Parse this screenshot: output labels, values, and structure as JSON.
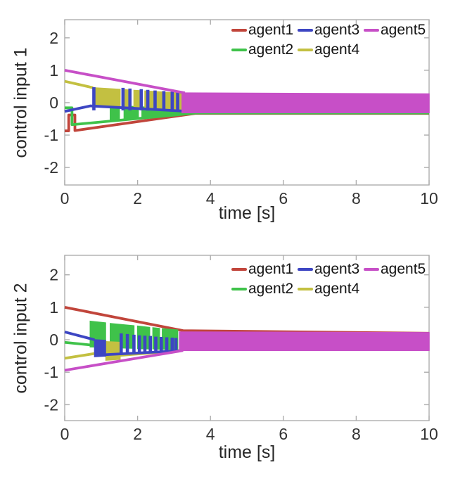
{
  "figure": {
    "background": "#ffffff"
  },
  "axis_style": {
    "box_color": "#adadad",
    "tick_label_color": "#333333",
    "tick_len": 7
  },
  "legend": {
    "rows": [
      [
        {
          "label": "agent1",
          "color": "#c1453b"
        },
        {
          "label": "agent3",
          "color": "#3d46c3"
        },
        {
          "label": "agent5",
          "color": "#c74fc7"
        }
      ],
      [
        {
          "label": "agent2",
          "color": "#3fc24a"
        },
        {
          "label": "agent4",
          "color": "#c3c041"
        }
      ]
    ]
  },
  "chart_data": [
    {
      "type": "line",
      "title": "",
      "ylabel": "control input 1",
      "xlabel": "time [s]",
      "xlim": [
        0,
        10
      ],
      "ylim": [
        -2.54,
        2.56
      ],
      "xticks": [
        0,
        2,
        4,
        6,
        8,
        10
      ],
      "yticks": [
        -2,
        -1,
        0,
        1,
        2
      ],
      "grid": false,
      "legend_position": "top-right-inside",
      "series": [
        {
          "name": "agent1",
          "color": "#c1453b",
          "lines": [
            [
              [
                0,
                -0.87
              ],
              [
                0.11,
                -0.87
              ],
              [
                0.11,
                -0.38
              ],
              [
                0.28,
                -0.38
              ],
              [
                0.28,
                -0.86
              ],
              [
                3.6,
                -0.33
              ],
              [
                10,
                -0.33
              ]
            ]
          ],
          "bands": []
        },
        {
          "name": "agent2",
          "color": "#3fc24a",
          "lines": [
            [
              [
                0,
                -0.16
              ],
              [
                0.2,
                -0.16
              ],
              [
                0.2,
                -0.68
              ],
              [
                3.6,
                -0.32
              ],
              [
                10,
                -0.32
              ]
            ]
          ],
          "bands": [
            {
              "x": [
                1.25,
                1.5
              ],
              "top": [
                -0.07,
                -0.09
              ],
              "bot": [
                -0.55,
                -0.52
              ]
            },
            {
              "x": [
                1.63,
                2.02
              ],
              "top": [
                -0.1,
                -0.13
              ],
              "bot": [
                -0.5,
                -0.45
              ]
            },
            {
              "x": [
                2.12,
                3.25
              ],
              "top": [
                -0.13,
                -0.2
              ],
              "bot": [
                -0.44,
                -0.31
              ]
            }
          ]
        },
        {
          "name": "agent4",
          "color": "#c3c041",
          "lines": [
            [
              [
                0,
                0.66
              ],
              [
                0.78,
                0.46
              ]
            ]
          ],
          "bands": [
            {
              "x": [
                0.78,
                1.52
              ],
              "top": [
                0.46,
                0.41
              ],
              "bot": [
                -0.1,
                -0.13
              ]
            },
            {
              "x": [
                1.64,
                1.74
              ],
              "top": [
                0.4,
                0.39
              ],
              "bot": [
                -0.13,
                -0.14
              ]
            },
            {
              "x": [
                1.9,
                2.07
              ],
              "top": [
                0.38,
                0.37
              ],
              "bot": [
                -0.14,
                -0.15
              ]
            },
            {
              "x": [
                2.2,
                3.22
              ],
              "top": [
                0.36,
                0.29
              ],
              "bot": [
                -0.15,
                -0.2
              ]
            }
          ]
        },
        {
          "name": "agent3",
          "color": "#3d46c3",
          "lines": [
            [
              [
                0,
                -0.27
              ],
              [
                0.7,
                -0.1
              ],
              [
                3.25,
                -0.26
              ]
            ]
          ],
          "bands": [
            {
              "x": [
                0.77,
                0.83
              ],
              "top": [
                0.46,
                0.46
              ],
              "bot": [
                -0.22,
                -0.22
              ]
            },
            {
              "x": [
                1.57,
                1.63
              ],
              "top": [
                0.44,
                0.44
              ],
              "bot": [
                -0.22,
                -0.22
              ]
            },
            {
              "x": [
                1.76,
                1.82
              ],
              "top": [
                0.42,
                0.42
              ],
              "bot": [
                -0.22,
                -0.22
              ]
            },
            {
              "x": [
                2.07,
                2.13
              ],
              "top": [
                0.4,
                0.4
              ],
              "bot": [
                -0.22,
                -0.22
              ]
            },
            {
              "x": [
                2.25,
                2.31
              ],
              "top": [
                0.38,
                0.38
              ],
              "bot": [
                -0.23,
                -0.23
              ]
            },
            {
              "x": [
                2.45,
                2.51
              ],
              "top": [
                0.36,
                0.36
              ],
              "bot": [
                -0.23,
                -0.23
              ]
            },
            {
              "x": [
                2.69,
                2.75
              ],
              "top": [
                0.34,
                0.34
              ],
              "bot": [
                -0.24,
                -0.24
              ]
            },
            {
              "x": [
                2.92,
                2.98
              ],
              "top": [
                0.32,
                0.32
              ],
              "bot": [
                -0.25,
                -0.25
              ]
            },
            {
              "x": [
                3.07,
                3.13
              ],
              "top": [
                0.3,
                0.3
              ],
              "bot": [
                -0.26,
                -0.26
              ]
            }
          ]
        },
        {
          "name": "agent5",
          "color": "#c74fc7",
          "lines": [
            [
              [
                0,
                1.0
              ],
              [
                3.3,
                0.3
              ]
            ]
          ],
          "bands": [
            {
              "x": [
                3.22,
                10
              ],
              "top": [
                0.3,
                0.27
              ],
              "bot": [
                -0.31,
                -0.31
              ]
            }
          ]
        }
      ]
    },
    {
      "type": "line",
      "title": "",
      "ylabel": "control input 2",
      "xlabel": "time [s]",
      "xlim": [
        0,
        10
      ],
      "ylim": [
        -2.49,
        2.6
      ],
      "xticks": [
        0,
        2,
        4,
        6,
        8,
        10
      ],
      "yticks": [
        -2,
        -1,
        0,
        1,
        2
      ],
      "grid": false,
      "legend_position": "top-right-inside",
      "series": [
        {
          "name": "agent1",
          "color": "#c1453b",
          "lines": [
            [
              [
                0,
                1.0
              ],
              [
                3.25,
                0.28
              ],
              [
                10,
                0.2
              ]
            ]
          ],
          "bands": []
        },
        {
          "name": "agent2",
          "color": "#3fc24a",
          "lines": [
            [
              [
                0,
                -0.08
              ],
              [
                0.7,
                -0.16
              ]
            ]
          ],
          "bands": [
            {
              "x": [
                0.7,
                1.12
              ],
              "top": [
                0.57,
                0.52
              ],
              "bot": [
                -0.22,
                -0.23
              ]
            },
            {
              "x": [
                1.25,
                1.9
              ],
              "top": [
                0.5,
                0.43
              ],
              "bot": [
                -0.24,
                -0.26
              ]
            },
            {
              "x": [
                2.0,
                2.33
              ],
              "top": [
                0.42,
                0.38
              ],
              "bot": [
                -0.27,
                -0.28
              ]
            },
            {
              "x": [
                2.42,
                2.6
              ],
              "top": [
                0.37,
                0.35
              ],
              "bot": [
                -0.28,
                -0.29
              ]
            },
            {
              "x": [
                2.68,
                3.1
              ],
              "top": [
                0.34,
                0.3
              ],
              "bot": [
                -0.29,
                -0.31
              ]
            }
          ]
        },
        {
          "name": "agent4",
          "color": "#c3c041",
          "lines": [
            [
              [
                0,
                -0.57
              ],
              [
                0.85,
                -0.42
              ],
              [
                1.13,
                -0.38
              ]
            ],
            [
              [
                1.52,
                -0.48
              ],
              [
                3.2,
                -0.33
              ]
            ]
          ],
          "bands": [
            {
              "x": [
                1.13,
                1.52
              ],
              "top": [
                -0.06,
                -0.08
              ],
              "bot": [
                -0.63,
                -0.6
              ]
            }
          ]
        },
        {
          "name": "agent3",
          "color": "#3d46c3",
          "lines": [
            [
              [
                0,
                0.24
              ],
              [
                0.82,
                0.0
              ]
            ],
            [
              [
                1.12,
                -0.46
              ],
              [
                3.15,
                -0.34
              ]
            ]
          ],
          "bands": [
            {
              "x": [
                0.82,
                1.12
              ],
              "top": [
                0.0,
                -0.02
              ],
              "bot": [
                -0.52,
                -0.5
              ]
            },
            {
              "x": [
                1.52,
                1.58
              ],
              "top": [
                0.18,
                0.18
              ],
              "bot": [
                -0.44,
                -0.44
              ]
            },
            {
              "x": [
                1.69,
                1.75
              ],
              "top": [
                0.16,
                0.16
              ],
              "bot": [
                -0.43,
                -0.43
              ]
            },
            {
              "x": [
                1.87,
                1.93
              ],
              "top": [
                0.14,
                0.14
              ],
              "bot": [
                -0.42,
                -0.42
              ]
            },
            {
              "x": [
                2.02,
                2.08
              ],
              "top": [
                0.12,
                0.12
              ],
              "bot": [
                -0.41,
                -0.41
              ]
            },
            {
              "x": [
                2.17,
                2.23
              ],
              "top": [
                0.11,
                0.11
              ],
              "bot": [
                -0.41,
                -0.41
              ]
            },
            {
              "x": [
                2.32,
                2.38
              ],
              "top": [
                0.1,
                0.1
              ],
              "bot": [
                -0.4,
                -0.4
              ]
            },
            {
              "x": [
                2.47,
                2.53
              ],
              "top": [
                0.08,
                0.08
              ],
              "bot": [
                -0.39,
                -0.39
              ]
            },
            {
              "x": [
                2.62,
                2.68
              ],
              "top": [
                0.07,
                0.07
              ],
              "bot": [
                -0.39,
                -0.39
              ]
            },
            {
              "x": [
                2.77,
                2.83
              ],
              "top": [
                0.06,
                0.06
              ],
              "bot": [
                -0.38,
                -0.38
              ]
            },
            {
              "x": [
                2.92,
                2.98
              ],
              "top": [
                0.05,
                0.05
              ],
              "bot": [
                -0.37,
                -0.37
              ]
            },
            {
              "x": [
                3.02,
                3.08
              ],
              "top": [
                0.04,
                0.04
              ],
              "bot": [
                -0.36,
                -0.36
              ]
            }
          ]
        },
        {
          "name": "agent5",
          "color": "#c74fc7",
          "lines": [
            [
              [
                0,
                -0.94
              ],
              [
                3.25,
                -0.33
              ]
            ]
          ],
          "bands": [
            {
              "x": [
                3.15,
                10
              ],
              "top": [
                0.24,
                0.22
              ],
              "bot": [
                -0.33,
                -0.33
              ]
            }
          ]
        }
      ]
    }
  ]
}
